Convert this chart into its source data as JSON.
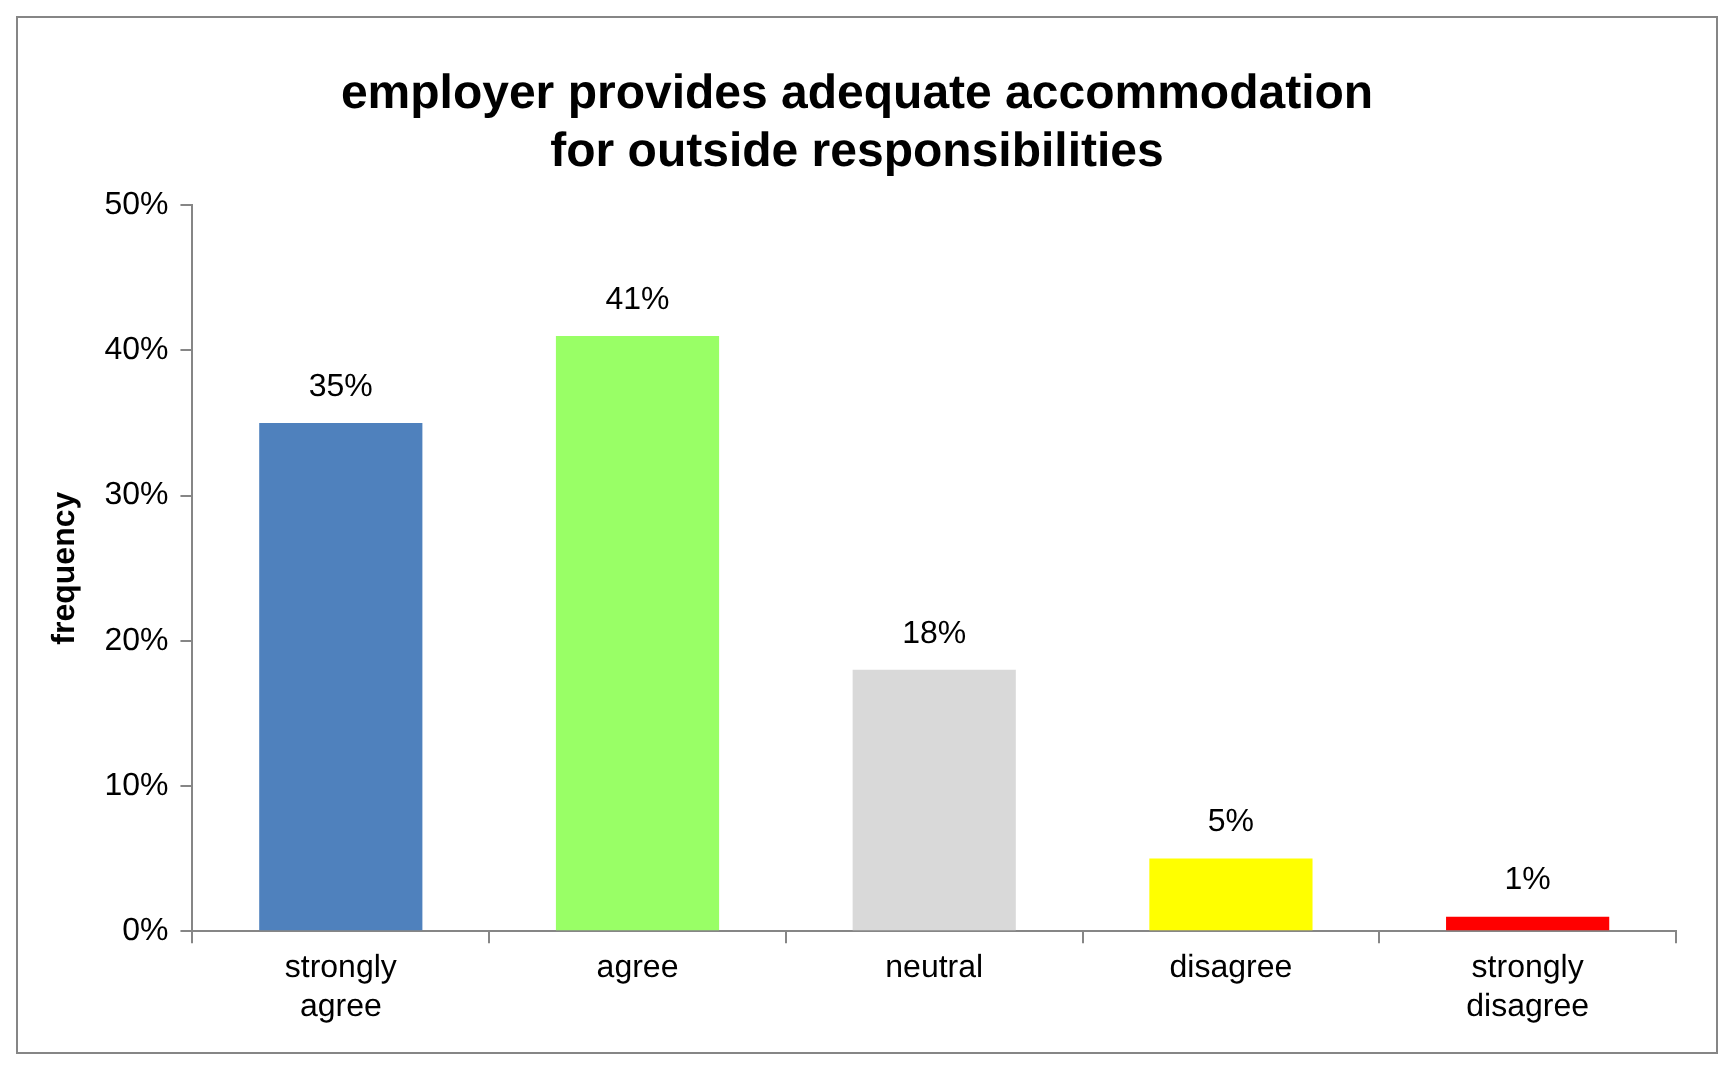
{
  "chart_data": {
    "type": "bar",
    "title": "employer provides adequate accommodation for outside responsibilities",
    "ylabel": "frequency",
    "categories": [
      "strongly agree",
      "agree",
      "neutral",
      "disagree",
      "strongly disagree"
    ],
    "values": [
      35,
      41,
      18,
      5,
      1
    ],
    "value_labels": [
      "35%",
      "41%",
      "18%",
      "5%",
      "1%"
    ],
    "colors": [
      "#4f81bd",
      "#99ff66",
      "#d9d9d9",
      "#ffff00",
      "#ff0000"
    ],
    "ylim": [
      0,
      50
    ],
    "yticks": [
      {
        "value": 0,
        "label": "0%"
      },
      {
        "value": 10,
        "label": "10%"
      },
      {
        "value": 20,
        "label": "20%"
      },
      {
        "value": 30,
        "label": "30%"
      },
      {
        "value": 40,
        "label": "40%"
      },
      {
        "value": 50,
        "label": "50%"
      }
    ],
    "grid": false,
    "legend": false
  }
}
